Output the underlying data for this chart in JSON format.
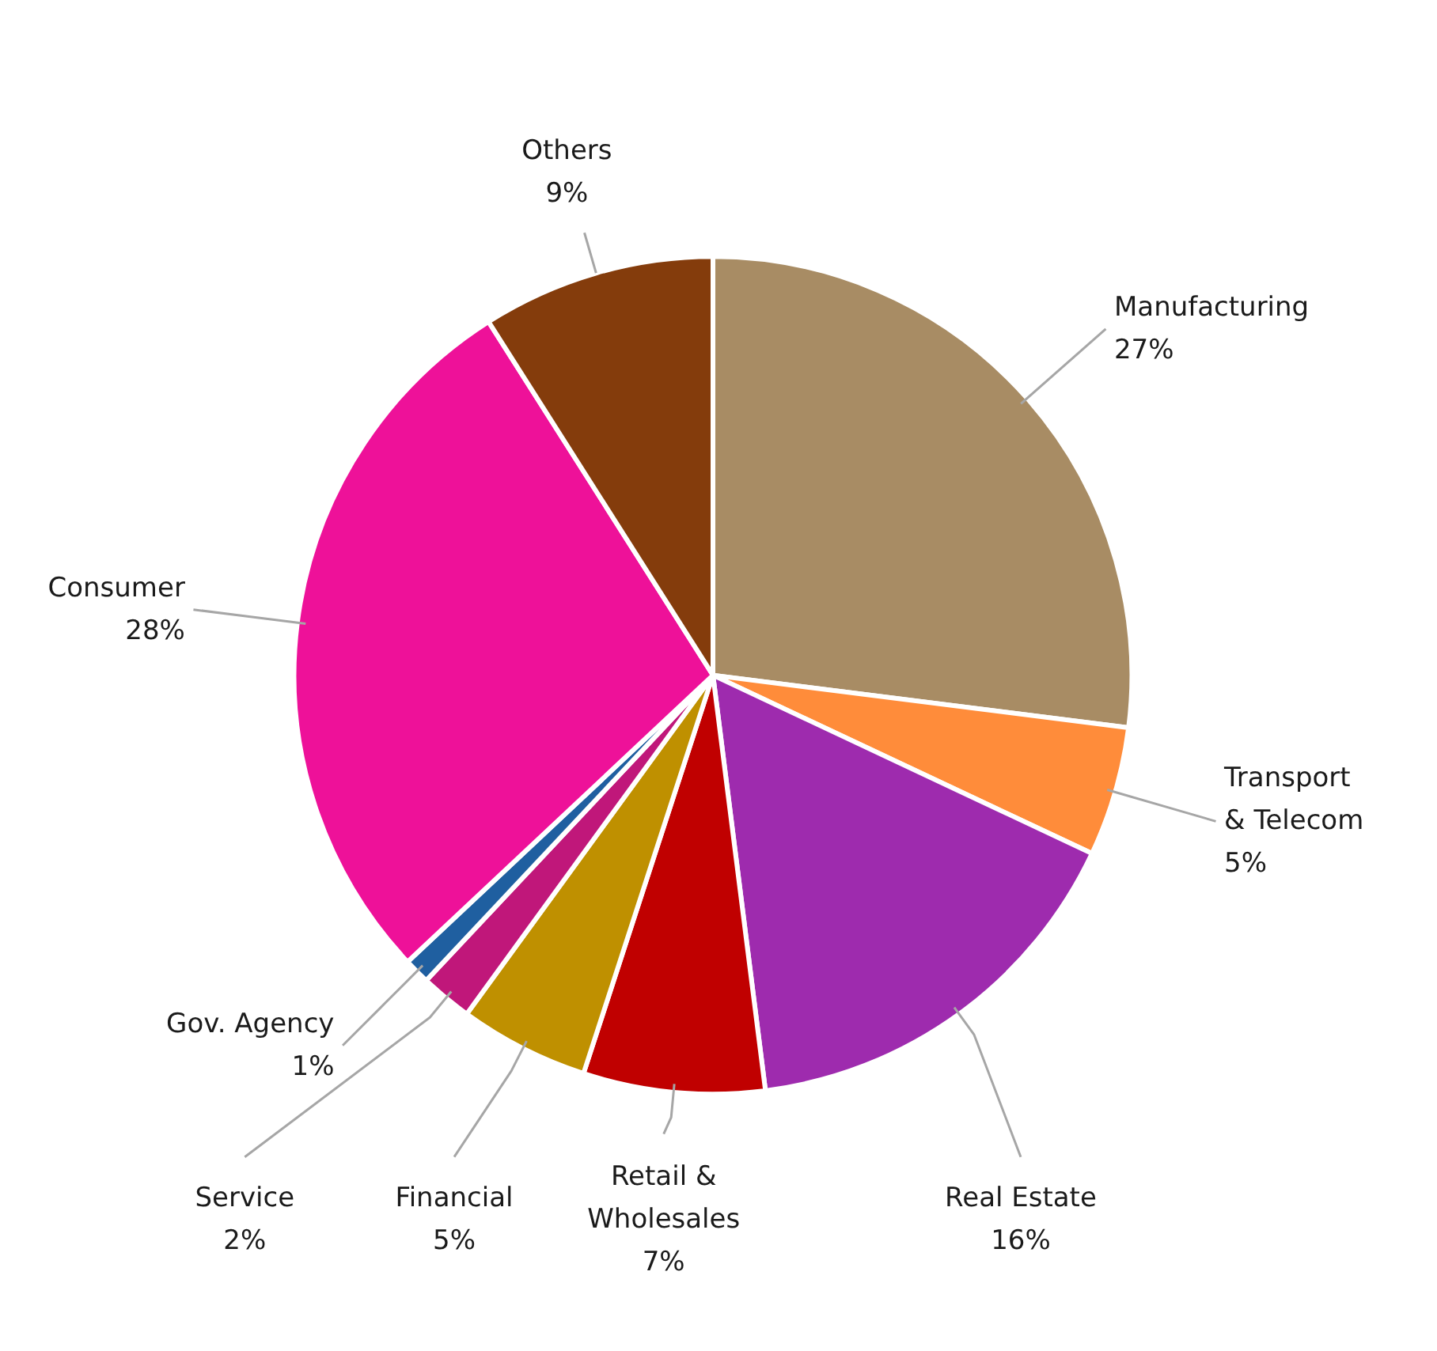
{
  "chart_data": {
    "type": "pie",
    "categories": [
      "Manufacturing",
      "Transport & Telecom",
      "Real Estate",
      "Retail & Wholesales",
      "Financial",
      "Service",
      "Gov. Agency",
      "Consumer",
      "Others"
    ],
    "values": [
      27,
      5,
      16,
      7,
      5,
      2,
      1,
      28,
      9
    ],
    "colors": [
      "#a88c64",
      "#ff8c3a",
      "#9e2bae",
      "#c00000",
      "#bf9000",
      "#c0177a",
      "#1f5fa0",
      "#ee1199",
      "#843c0c"
    ],
    "value_labels": [
      "27%",
      "5%",
      "16%",
      "7%",
      "5%",
      "2%",
      "1%",
      "28%",
      "9%"
    ]
  }
}
